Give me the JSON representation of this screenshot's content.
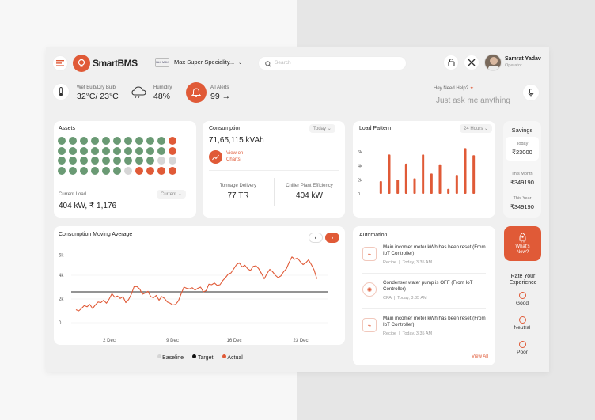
{
  "header": {
    "app_name": "SmartBMS",
    "site_name": "Max Super Speciality...",
    "site_logo_text": "BLK·MAX",
    "search_placeholder": "Search",
    "user_name": "Samrat Yadav",
    "user_role": "Operator"
  },
  "stats": {
    "wetbulb_label": "Wet Bulb/Dry Bulb",
    "wetbulb_value": "32°C/ 23°C",
    "humidity_label": "Humidity",
    "humidity_value": "48%",
    "alerts_label": "All Alerts",
    "alerts_value": "99 →",
    "help_label": "Hey Need Help?",
    "help_placeholder": "Just ask me anything"
  },
  "assets": {
    "title": "Assets",
    "rows": [
      [
        "green",
        "green",
        "green",
        "green",
        "green",
        "green",
        "green",
        "green",
        "green",
        "green",
        "red"
      ],
      [
        "green",
        "green",
        "green",
        "green",
        "green",
        "green",
        "green",
        "green",
        "green",
        "green",
        "red"
      ],
      [
        "green",
        "green",
        "green",
        "green",
        "green",
        "green",
        "green",
        "green",
        "green",
        "gray",
        "gray"
      ],
      [
        "green",
        "green",
        "green",
        "green",
        "green",
        "green",
        "gray",
        "red",
        "red",
        "red",
        "red"
      ]
    ],
    "current_load_label": "Current Load",
    "current_select": "Current",
    "current_load_value": "404 kW, ₹ 1,176"
  },
  "consumption": {
    "title": "Consumption",
    "period": "Today",
    "value": "71,65,115 kVAh",
    "view_label": "View on\nCharts",
    "tonnage_label": "Tonnage Delivery",
    "tonnage_value": "77 TR",
    "chiller_label": "Chiller Plant Efficiency",
    "chiller_value": "404 kW"
  },
  "load_pattern": {
    "title": "Load Pattern",
    "period": "24 Hours",
    "bar_color": "#e05a37"
  },
  "savings": {
    "title": "Savings",
    "today_label": "Today",
    "today_value": "₹23000",
    "month_label": "This Month",
    "month_value": "₹349190",
    "year_label": "This Year",
    "year_value": "₹349190"
  },
  "cma": {
    "title": "Consumption Moving Average",
    "legend_baseline": "Baseline",
    "legend_target": "Target",
    "legend_actual": "Actual"
  },
  "automation": {
    "title": "Automation",
    "items": [
      {
        "text": "Main incomer meter kWh has been reset (From IoT Controller)",
        "source": "Recipe",
        "time": "Today, 3:35 AM"
      },
      {
        "text": "Condenser water pump is OFF (From IoT Controller)",
        "source": "CPA",
        "time": "Today, 3:35 AM"
      },
      {
        "text": "Main incomer meter kWh has been reset (From IoT Controller)",
        "source": "Recipe",
        "time": "Today, 3:35 AM"
      }
    ],
    "view_all": "View All"
  },
  "whats_new": "What's\nNew?",
  "rate": {
    "title": "Rate Your\nExperience",
    "good": "Good",
    "neutral": "Neutral",
    "poor": "Poor"
  },
  "chart_data": [
    {
      "type": "bar",
      "title": "Load Pattern",
      "y_ticks": [
        "6k",
        "4k",
        "2k",
        "0"
      ],
      "ylim": [
        0,
        7000
      ],
      "values": [
        1800,
        5600,
        2000,
        4300,
        2200,
        5600,
        2900,
        4200,
        700,
        2700,
        6500,
        5500
      ],
      "color": "#e05a37"
    },
    {
      "type": "line",
      "title": "Consumption Moving Average",
      "y_ticks": [
        "6k",
        "4k",
        "2k",
        "0"
      ],
      "x_ticks": [
        "2 Dec",
        "9 Dec",
        "16 Dec",
        "23 Dec"
      ],
      "ylim": [
        0,
        6000
      ],
      "series": [
        {
          "name": "Actual",
          "values": [
            1100,
            1000,
            1200,
            1450,
            1350,
            1550,
            1200,
            1500,
            1750,
            1700,
            1900,
            1650,
            2000,
            2450,
            2150,
            2250,
            2050,
            2200,
            1700,
            1950,
            2400,
            3050,
            3050,
            2850,
            2400,
            2500,
            2650,
            2200,
            2100,
            2300,
            1900,
            2200,
            2050,
            1750,
            1650,
            1500,
            1550,
            1850,
            2450,
            3000,
            2900,
            2850,
            2950,
            2750,
            2900,
            3000,
            2600,
            2700,
            3250,
            3200,
            3350,
            3150,
            3200,
            3550,
            3800,
            4100,
            4200,
            4550,
            4900,
            5050,
            4700,
            4850,
            4550,
            4400,
            4750,
            4800,
            4550,
            4150,
            3700,
            4150,
            4500,
            4300,
            4000,
            3800,
            3950,
            4300,
            4550,
            5100,
            5550,
            5350,
            5450,
            5150,
            4900,
            5050,
            5300,
            4900,
            4450,
            3700
          ],
          "color": "#e05a37"
        },
        {
          "name": "Target",
          "values": [
            2600,
            2600
          ],
          "color": "#555555"
        }
      ]
    }
  ]
}
